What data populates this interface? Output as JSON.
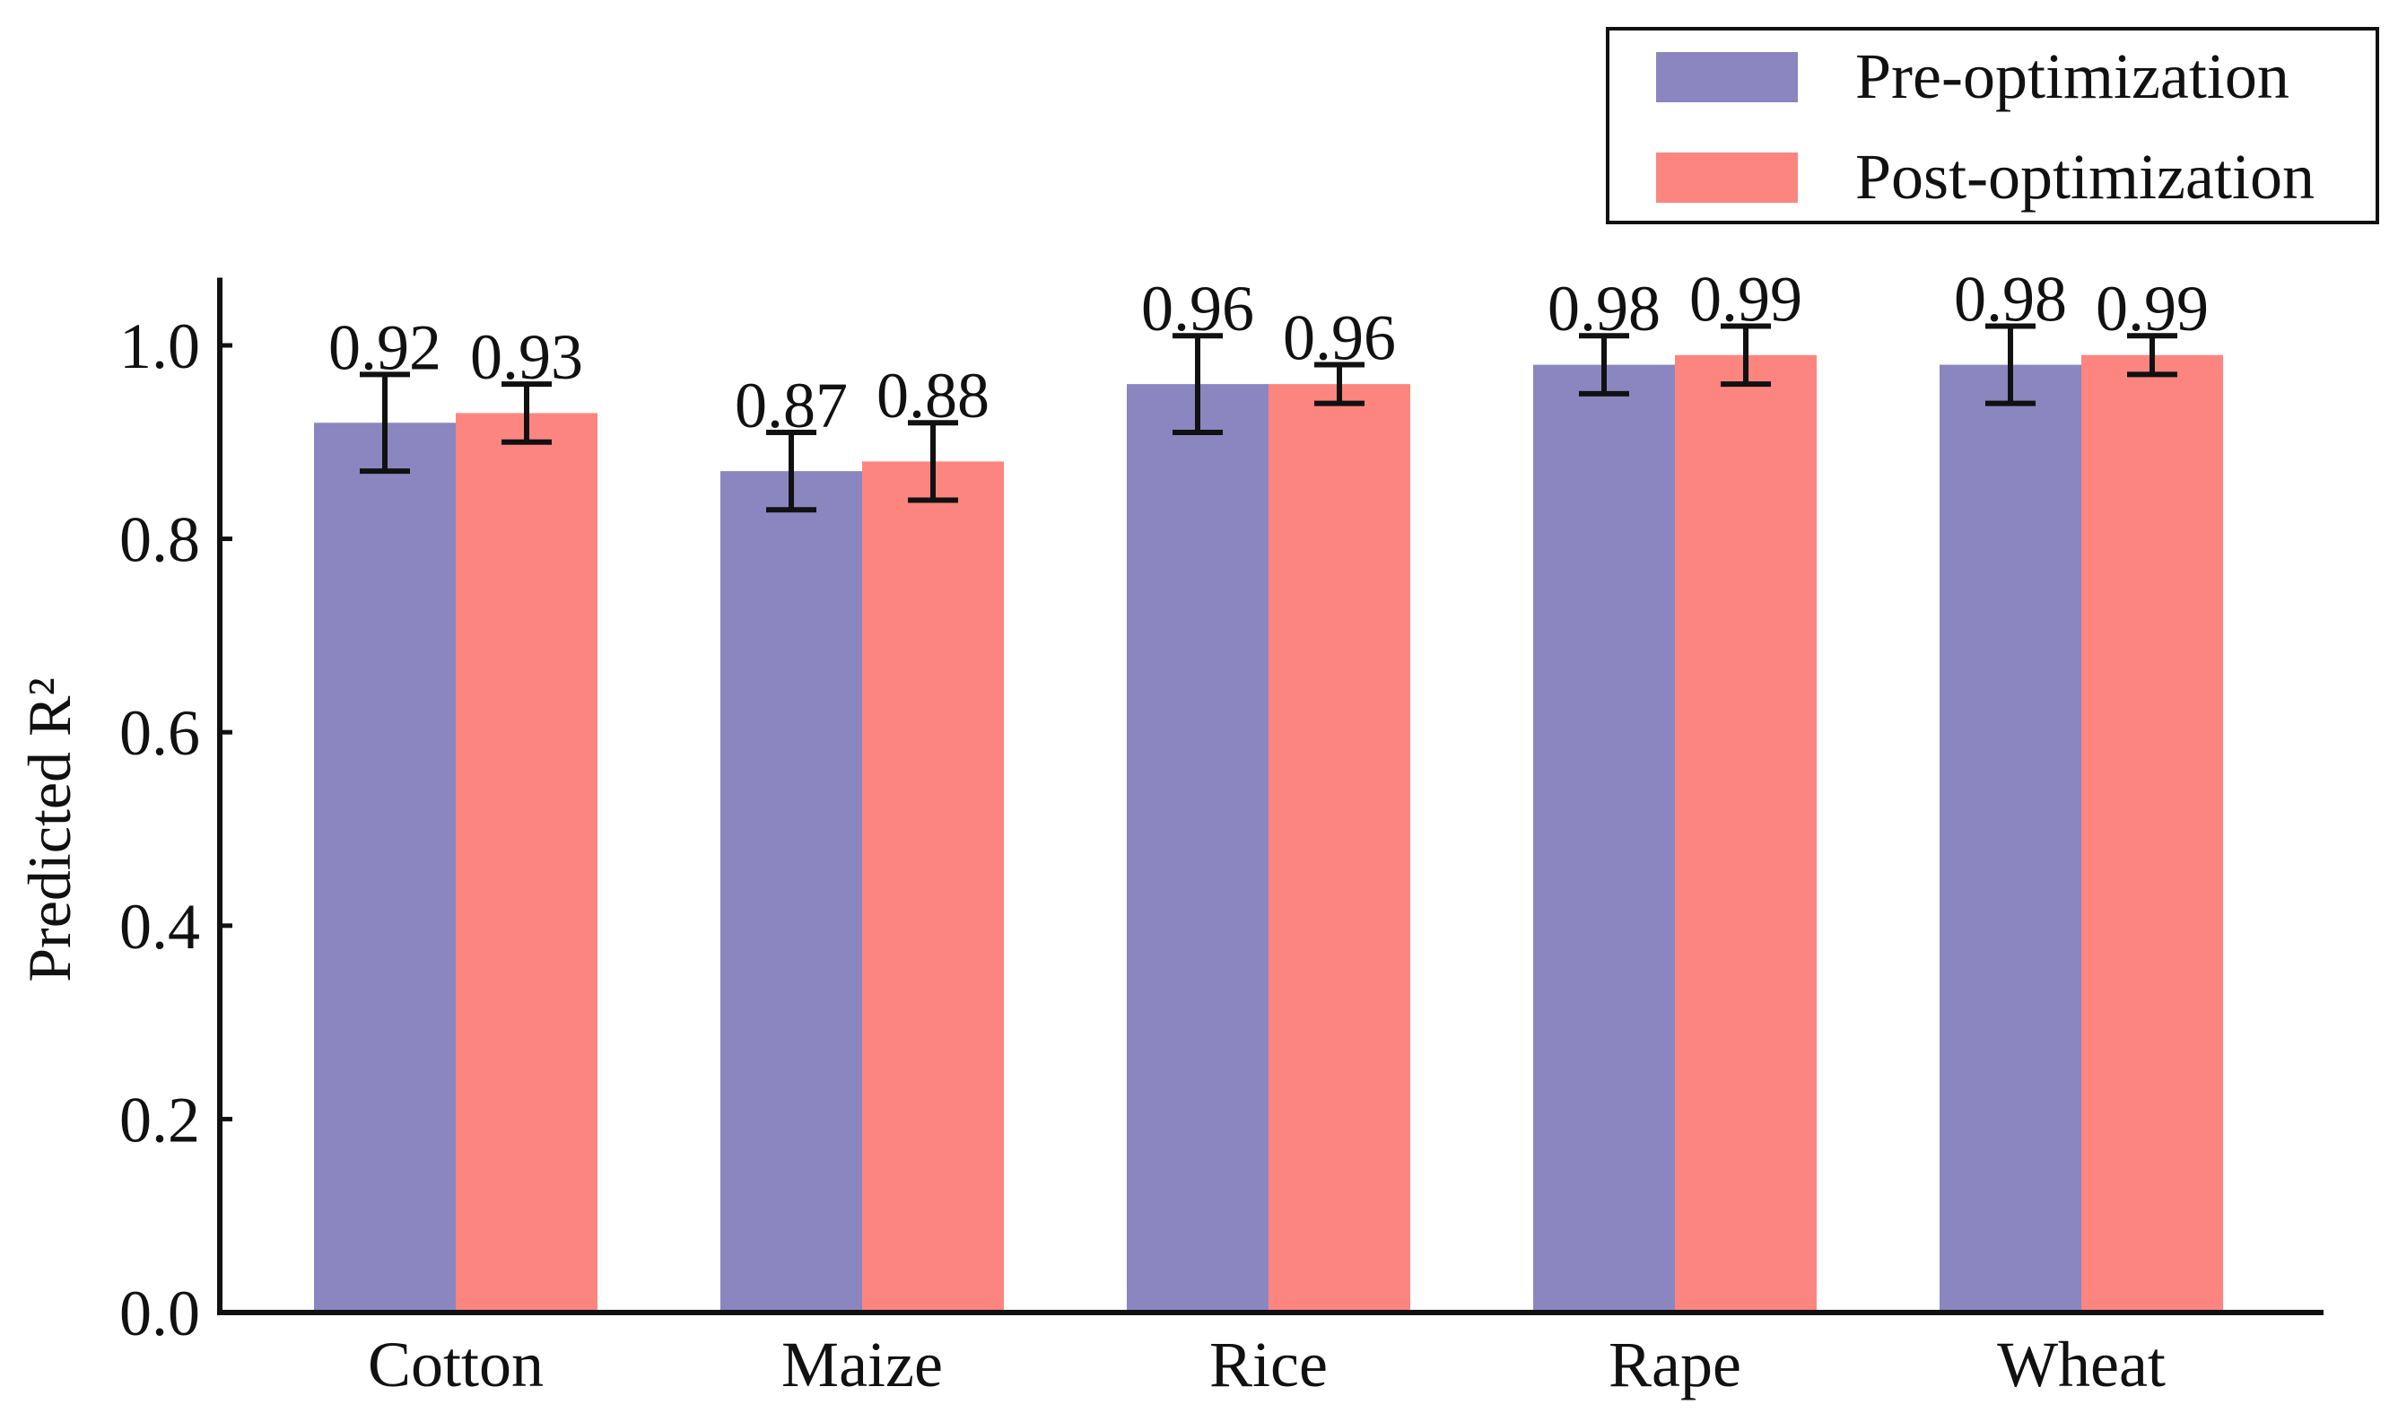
{
  "chart_data": {
    "type": "bar",
    "title": "",
    "xlabel": "",
    "ylabel": "Predicted R²",
    "ylim": [
      0,
      1.07
    ],
    "yticks": [
      0.0,
      0.2,
      0.4,
      0.6,
      0.8,
      1.0
    ],
    "ytick_labels": [
      "0.0",
      "0.2",
      "0.4",
      "0.6",
      "0.8",
      "1.0"
    ],
    "grid": false,
    "legend_position": "top-right",
    "categories": [
      "Cotton",
      "Maize",
      "Rice",
      "Rape",
      "Wheat"
    ],
    "series": [
      {
        "name": "Pre-optimization",
        "color": "#8b86c0",
        "values": [
          0.92,
          0.87,
          0.96,
          0.98,
          0.98
        ],
        "labels": [
          "0.92",
          "0.87",
          "0.96",
          "0.98",
          "0.98"
        ],
        "errors": [
          0.05,
          0.04,
          0.05,
          0.03,
          0.04
        ]
      },
      {
        "name": "Post-optimization",
        "color": "#fd8580",
        "values": [
          0.93,
          0.88,
          0.96,
          0.99,
          0.99
        ],
        "labels": [
          "0.93",
          "0.88",
          "0.96",
          "0.99",
          "0.99"
        ],
        "errors": [
          0.03,
          0.04,
          0.02,
          0.03,
          0.02
        ]
      }
    ]
  }
}
